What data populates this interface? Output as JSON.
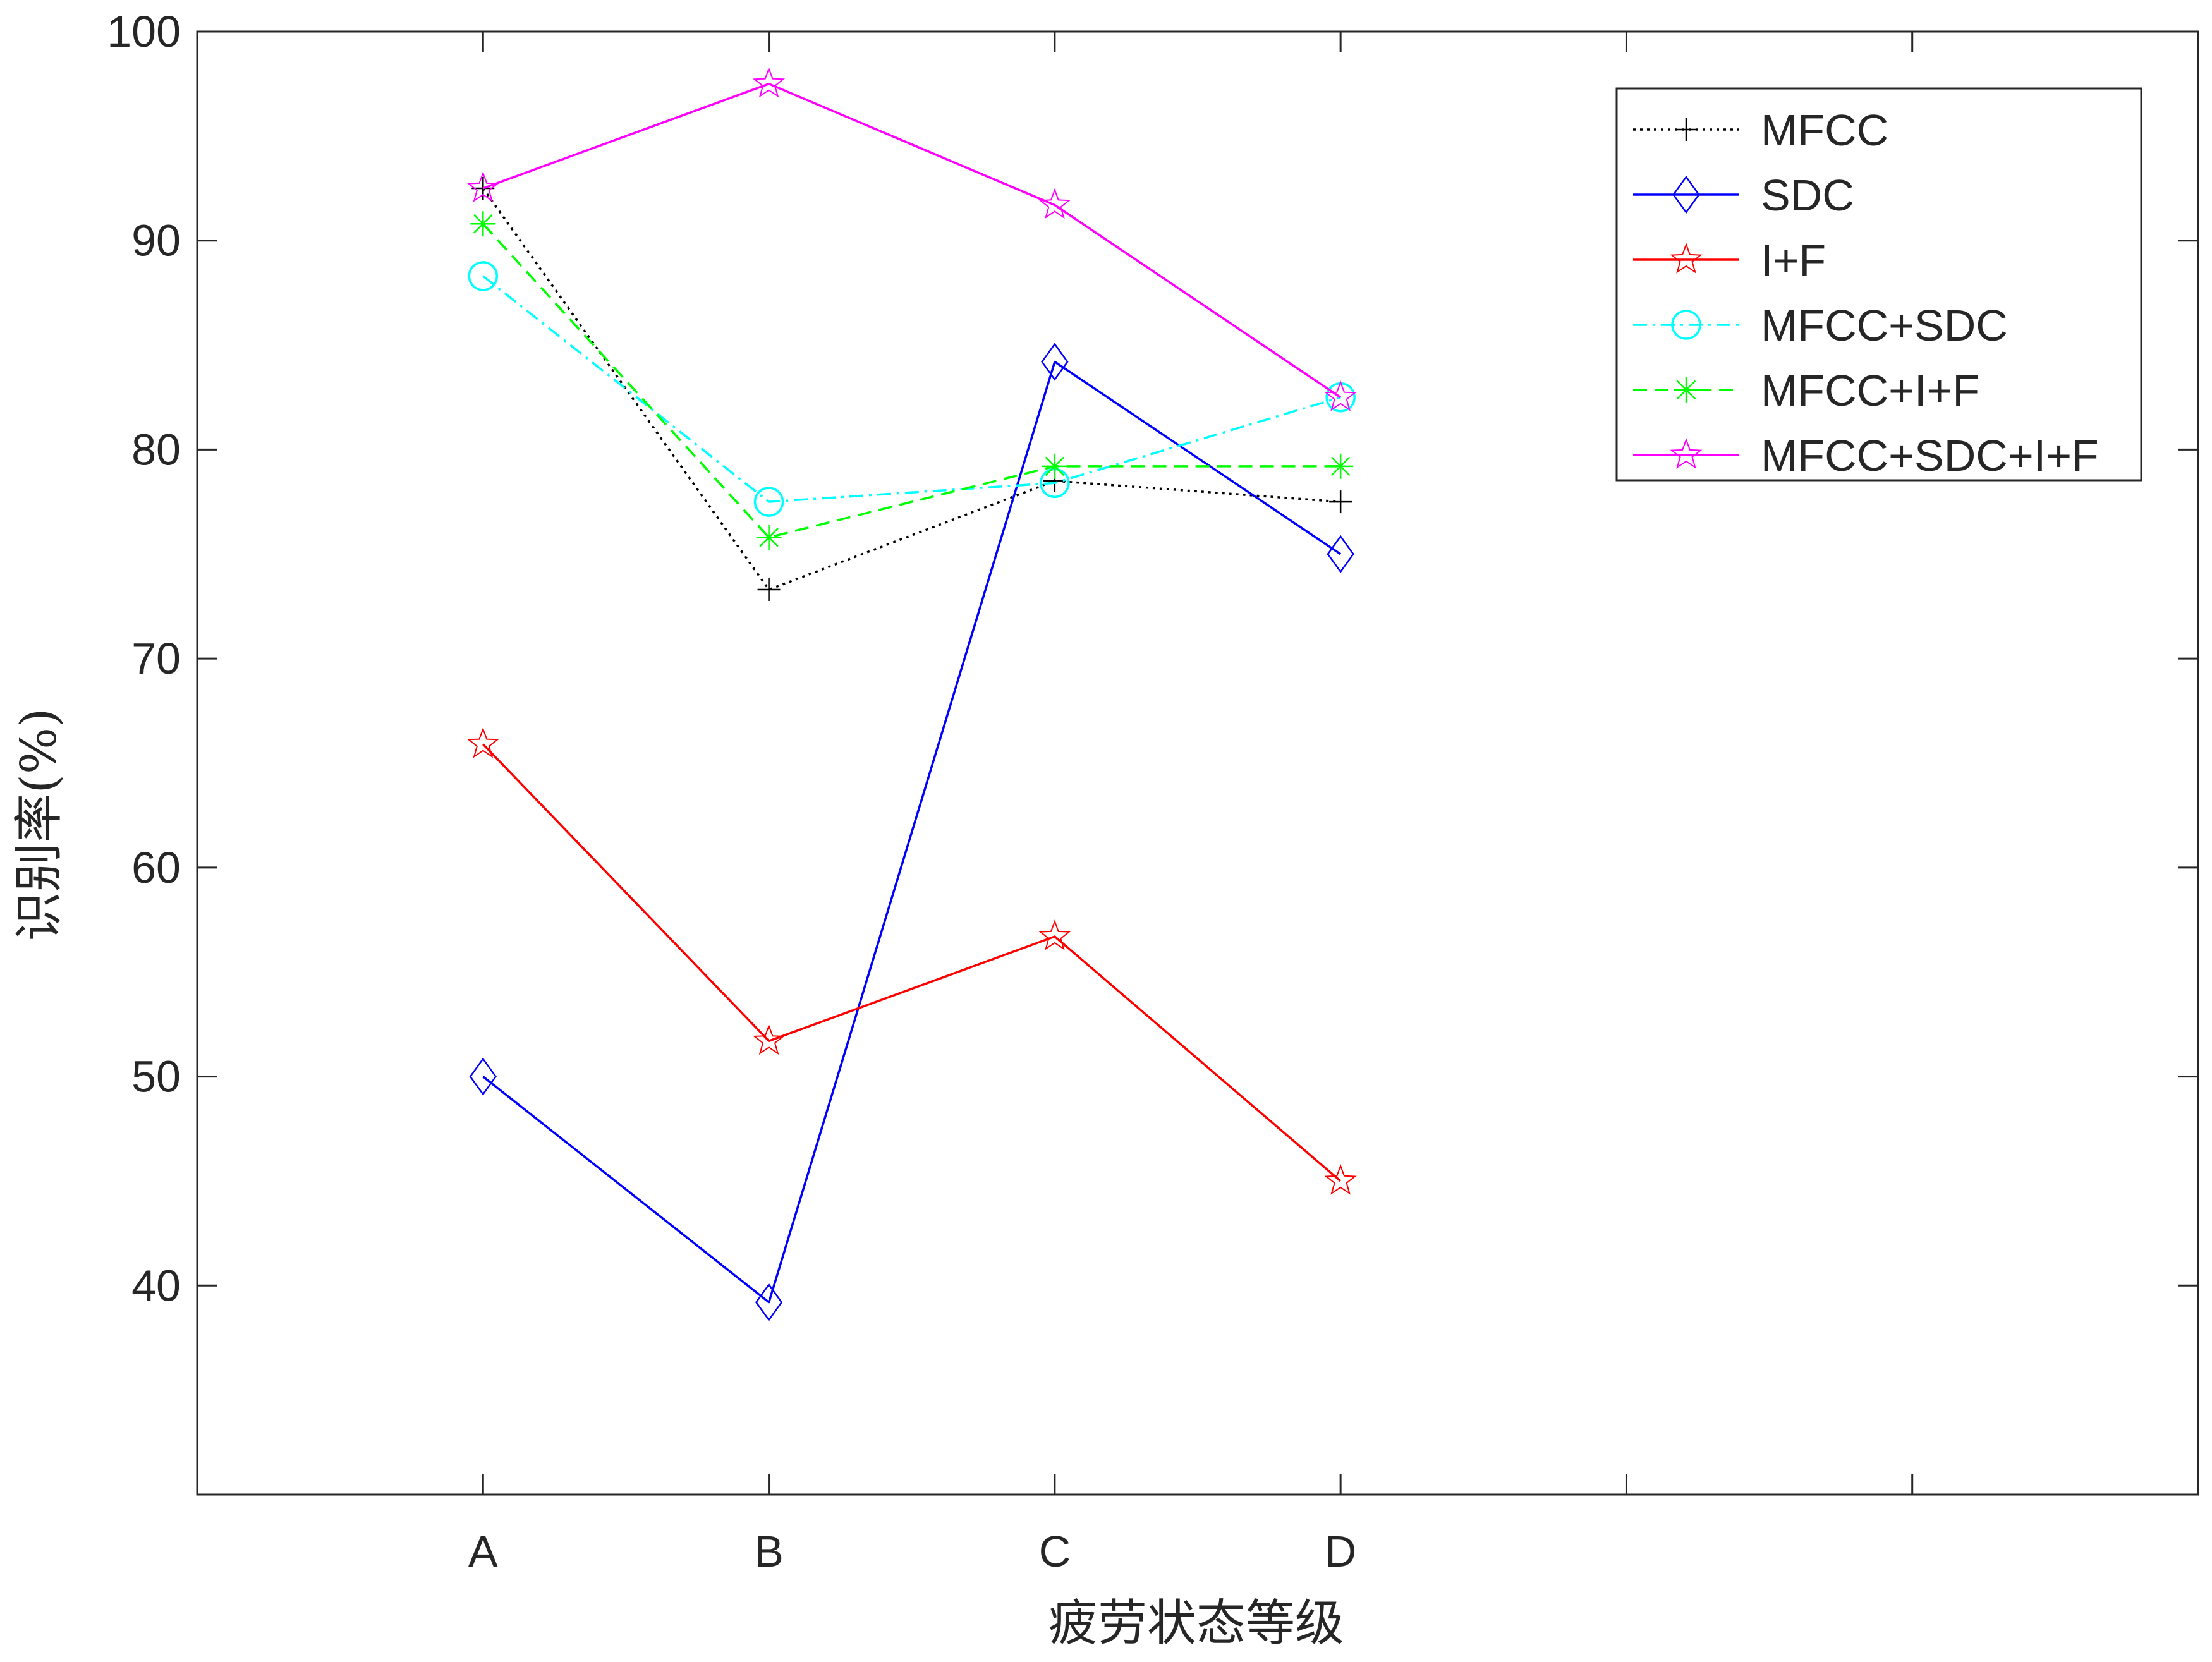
{
  "chart_data": {
    "type": "line",
    "title": "",
    "xlabel": "疲劳状态等级",
    "ylabel": "识别率(%)",
    "categories": [
      "A",
      "B",
      "C",
      "D"
    ],
    "xtick_count": 6,
    "ylim": [
      30,
      100
    ],
    "yticks": [
      40,
      50,
      60,
      70,
      80,
      90,
      100
    ],
    "grid": false,
    "legend_position": "top-right",
    "series": [
      {
        "name": "MFCC",
        "values": [
          92.5,
          73.3,
          78.5,
          77.5
        ],
        "color": "#000000",
        "line_style": "dotted",
        "marker": "plus"
      },
      {
        "name": "SDC",
        "values": [
          50.0,
          39.2,
          84.2,
          75.0
        ],
        "color": "#0000ff",
        "line_style": "solid",
        "marker": "diamond"
      },
      {
        "name": "I+F",
        "values": [
          65.9,
          51.7,
          56.7,
          45.0
        ],
        "color": "#ff0000",
        "line_style": "solid",
        "marker": "pentagram"
      },
      {
        "name": "MFCC+SDC",
        "values": [
          88.3,
          77.5,
          78.4,
          82.5
        ],
        "color": "#00ffff",
        "line_style": "dashdot",
        "marker": "circle"
      },
      {
        "name": "MFCC+I+F",
        "values": [
          90.8,
          75.8,
          79.2,
          79.2
        ],
        "color": "#00ff00",
        "line_style": "dashed",
        "marker": "asterisk"
      },
      {
        "name": "MFCC+SDC+I+F",
        "values": [
          92.5,
          97.5,
          91.7,
          82.5
        ],
        "color": "#ff00ff",
        "line_style": "solid",
        "marker": "pentagram"
      }
    ]
  }
}
